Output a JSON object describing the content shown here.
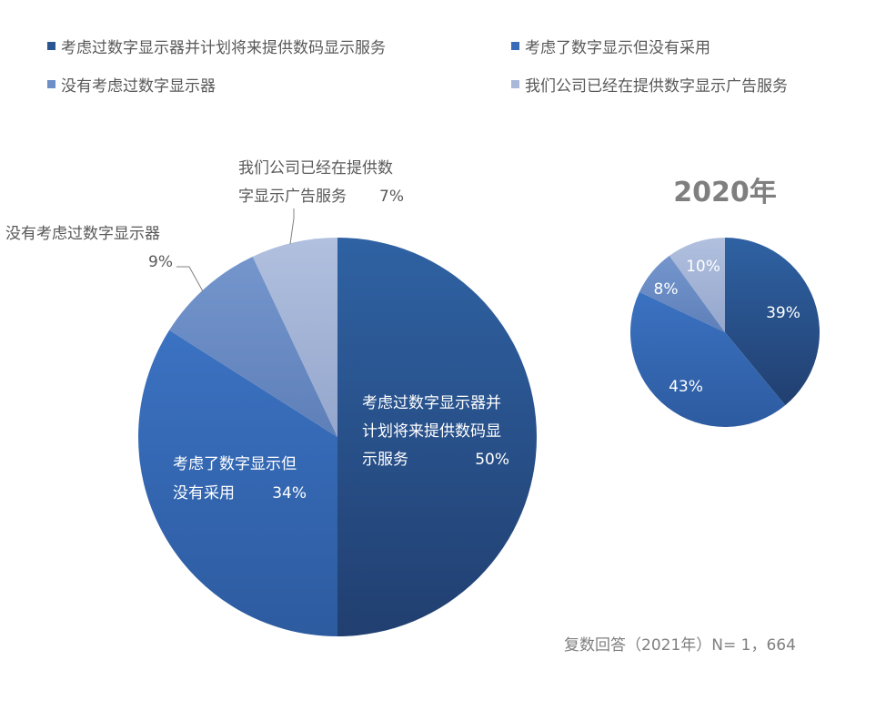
{
  "chart_data": [
    {
      "type": "pie",
      "title": "",
      "slices": [
        {
          "label": "考虑过数字显示器并计划将来提供数码显示服务",
          "label_lines": [
            "考虑过数字显示器并",
            "计划将来提供数码显",
            "示服务"
          ],
          "value": 50,
          "value_label": "50%",
          "color": "#2a5591"
        },
        {
          "label": "考虑了数字显示但没有采用",
          "label_lines": [
            "考虑了数字显示但",
            "没有采用"
          ],
          "value": 34,
          "value_label": "34%",
          "color": "#3a6bb8"
        },
        {
          "label": "没有考虑过数字显示器",
          "label_lines": [
            "没有考虑过数字显示器"
          ],
          "value": 9,
          "value_label": "9%",
          "color": "#6d8ec7"
        },
        {
          "label": "我们公司已经在提供数字显示广告服务",
          "label_lines": [
            "我们公司已经在提供数",
            "字显示广告服务"
          ],
          "value": 7,
          "value_label": "7%",
          "color": "#a9b8d9"
        }
      ]
    },
    {
      "type": "pie",
      "title": "2020年",
      "slices": [
        {
          "label": "考虑过数字显示器并计划将来提供数码显示服务",
          "value": 39,
          "value_label": "39%",
          "color": "#2a5591"
        },
        {
          "label": "考虑了数字显示但没有采用",
          "value": 43,
          "value_label": "43%",
          "color": "#3a6bb8"
        },
        {
          "label": "没有考虑过数字显示器",
          "value": 8,
          "value_label": "8%",
          "color": "#6d8ec7"
        },
        {
          "label": "我们公司已经在提供数字显示广告服务",
          "value": 10,
          "value_label": "10%",
          "color": "#a9b8d9"
        }
      ]
    }
  ],
  "legend": {
    "placement": "top",
    "items": [
      {
        "label": "考虑过数字显示器并计划将来提供数码显示服务",
        "color": "#2a5591"
      },
      {
        "label": "考虑了数字显示但没有采用",
        "color": "#3a6bb8"
      },
      {
        "label": "没有考虑过数字显示器",
        "color": "#6d8ec7"
      },
      {
        "label": "我们公司已经在提供数字显示广告服务",
        "color": "#a9b8d9"
      }
    ]
  },
  "footnote": "复数回答（2021年）N= 1，664"
}
